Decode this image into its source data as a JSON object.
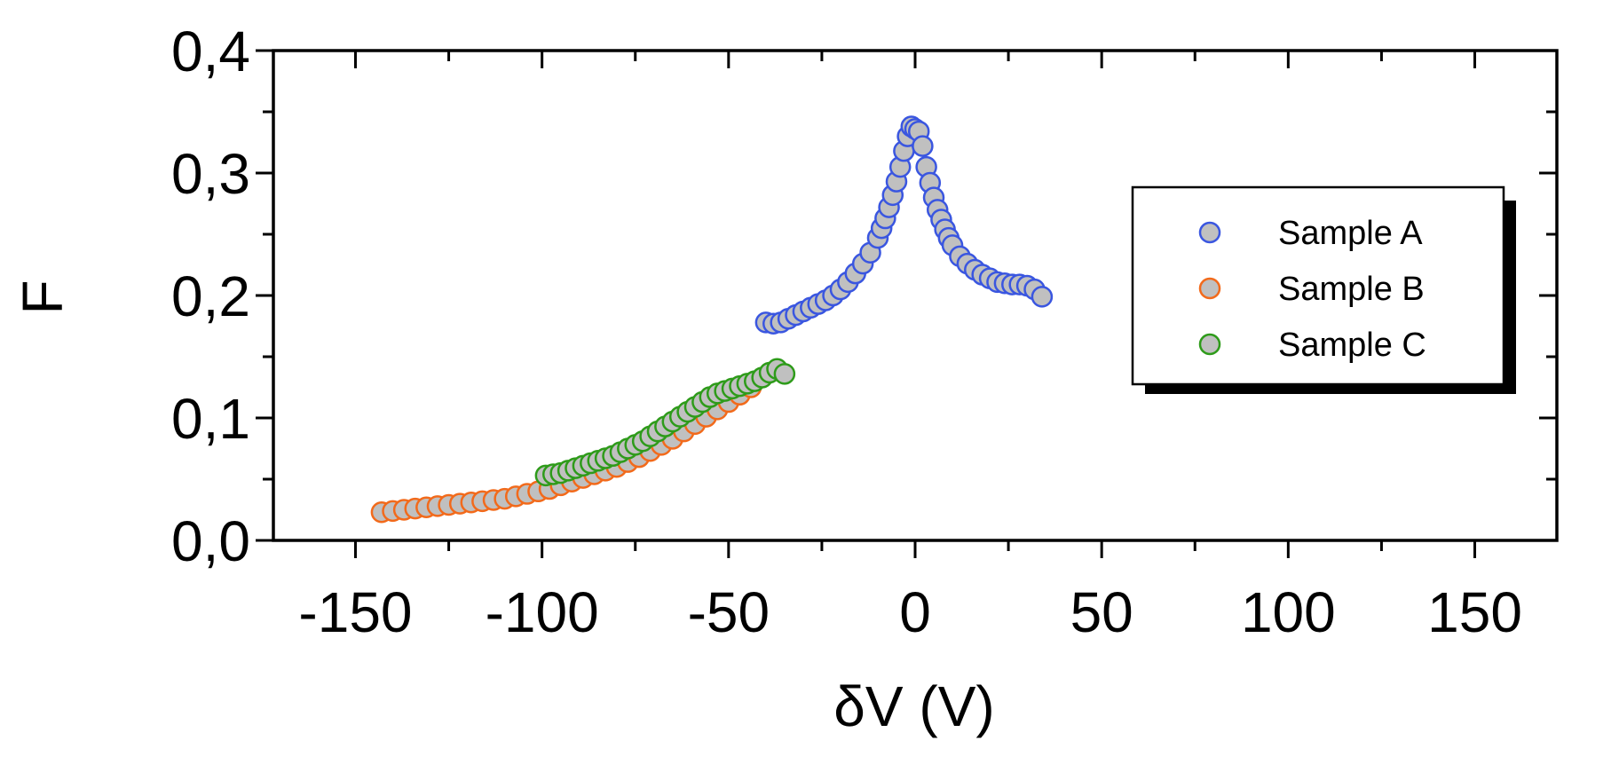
{
  "chart_data": {
    "type": "scatter",
    "title": "",
    "xlabel": "δV (V)",
    "ylabel": "F",
    "xlim": [
      -172,
      172
    ],
    "ylim": [
      0.0,
      0.4
    ],
    "xticks": [
      -150,
      -100,
      -50,
      0,
      50,
      100,
      150
    ],
    "xtick_labels": [
      "-150",
      "-100",
      "-50",
      "0",
      "50",
      "100",
      "150"
    ],
    "yticks": [
      0.0,
      0.1,
      0.2,
      0.3,
      0.4
    ],
    "ytick_labels": [
      "0,0",
      "0,1",
      "0,2",
      "0,3",
      "0,4"
    ],
    "grid": false,
    "legend_position": "top-right",
    "marker_fill": "#c0c0c0",
    "series": [
      {
        "name": "Sample A",
        "color": "#3a56e0",
        "x": [
          -40,
          -38,
          -36,
          -34,
          -32,
          -30,
          -28,
          -26,
          -24,
          -22,
          -20,
          -18,
          -16,
          -14,
          -12,
          -10,
          -9,
          -8,
          -7,
          -6,
          -5,
          -4,
          -3,
          -2,
          -1,
          0,
          1,
          2,
          3,
          4,
          5,
          6,
          7,
          8,
          9,
          10,
          12,
          14,
          16,
          18,
          20,
          22,
          24,
          26,
          28,
          30,
          32,
          34
        ],
        "y": [
          0.178,
          0.177,
          0.178,
          0.181,
          0.184,
          0.187,
          0.19,
          0.193,
          0.196,
          0.2,
          0.205,
          0.211,
          0.218,
          0.226,
          0.235,
          0.247,
          0.255,
          0.263,
          0.272,
          0.282,
          0.293,
          0.305,
          0.318,
          0.33,
          0.338,
          0.336,
          0.334,
          0.322,
          0.305,
          0.292,
          0.28,
          0.27,
          0.262,
          0.254,
          0.247,
          0.241,
          0.232,
          0.226,
          0.221,
          0.217,
          0.214,
          0.211,
          0.21,
          0.209,
          0.209,
          0.208,
          0.205,
          0.199
        ]
      },
      {
        "name": "Sample B",
        "color": "#f26a1b",
        "x": [
          -143,
          -140,
          -137,
          -134,
          -131,
          -128,
          -125,
          -122,
          -119,
          -116,
          -113,
          -110,
          -107,
          -104,
          -101,
          -98,
          -95,
          -92,
          -89,
          -86,
          -83,
          -80,
          -77,
          -74,
          -71,
          -68,
          -65,
          -62,
          -59,
          -56,
          -53,
          -50,
          -47,
          -44
        ],
        "y": [
          0.023,
          0.024,
          0.025,
          0.026,
          0.027,
          0.028,
          0.029,
          0.03,
          0.031,
          0.032,
          0.033,
          0.034,
          0.036,
          0.038,
          0.04,
          0.042,
          0.045,
          0.048,
          0.051,
          0.054,
          0.057,
          0.06,
          0.064,
          0.068,
          0.073,
          0.078,
          0.083,
          0.089,
          0.095,
          0.101,
          0.107,
          0.113,
          0.119,
          0.125
        ]
      },
      {
        "name": "Sample C",
        "color": "#2e9b1a",
        "x": [
          -99,
          -97,
          -95,
          -93,
          -91,
          -89,
          -87,
          -85,
          -83,
          -81,
          -79,
          -77,
          -75,
          -73,
          -71,
          -69,
          -67,
          -65,
          -63,
          -61,
          -59,
          -57,
          -55,
          -53,
          -51,
          -49,
          -47,
          -45,
          -43,
          -41,
          -39,
          -37,
          -35
        ],
        "y": [
          0.053,
          0.054,
          0.055,
          0.057,
          0.059,
          0.061,
          0.063,
          0.065,
          0.067,
          0.069,
          0.072,
          0.075,
          0.078,
          0.081,
          0.085,
          0.089,
          0.093,
          0.097,
          0.101,
          0.105,
          0.109,
          0.113,
          0.117,
          0.12,
          0.122,
          0.124,
          0.126,
          0.128,
          0.13,
          0.133,
          0.137,
          0.14,
          0.136
        ]
      }
    ]
  }
}
